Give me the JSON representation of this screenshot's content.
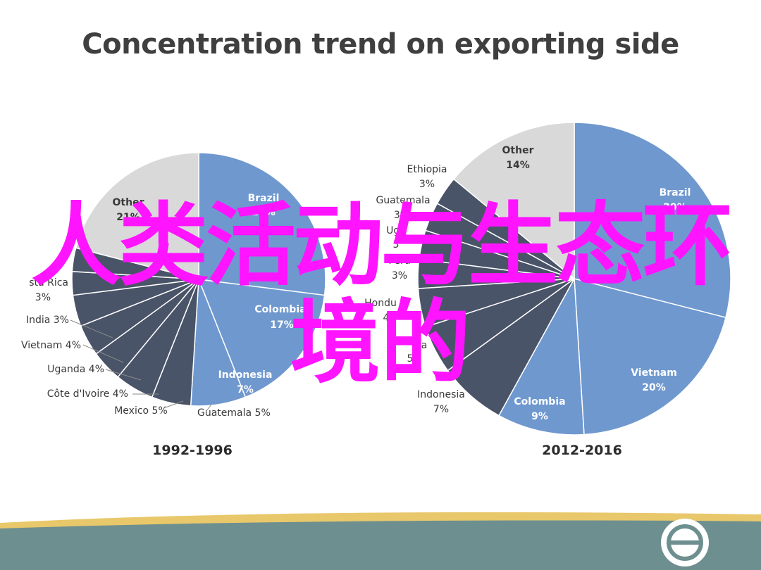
{
  "slide": {
    "title": "Concentration trend on exporting side",
    "overlay_line1": "人类活动与生态环",
    "overlay_line2": "境的"
  },
  "colors": {
    "brazil_blue": "#6f98cf",
    "dark_slate": "#4a5468",
    "other_gray": "#d9d9d9",
    "slice_border": "#ffffff",
    "overlay_magenta": "#ff14ff",
    "footer_teal": "#6e8f90",
    "footer_gold": "#e8c86a"
  },
  "chart_data": [
    {
      "type": "pie",
      "title": "1992-1996",
      "slices": [
        {
          "label": "Brazil",
          "value": 27,
          "value_text": "27%"
        },
        {
          "label": "Colombia",
          "value": 17,
          "value_text": "17%"
        },
        {
          "label": "Indonesia",
          "value": 7,
          "value_text": "7%"
        },
        {
          "label": "Guatemala",
          "value": 5,
          "value_text": "5%"
        },
        {
          "label": "Mexico",
          "value": 5,
          "value_text": "5%"
        },
        {
          "label": "Côte d'Ivoire",
          "value": 4,
          "value_text": "4%"
        },
        {
          "label": "Uganda",
          "value": 4,
          "value_text": "4%"
        },
        {
          "label": "Vietnam",
          "value": 4,
          "value_text": "4%"
        },
        {
          "label": "India",
          "value": 3,
          "value_text": "3%"
        },
        {
          "label": "Costa Rica",
          "value": 3,
          "value_text": "3%"
        },
        {
          "label": "Other",
          "value": 21,
          "value_text": "21%"
        }
      ],
      "visible_labels": [
        {
          "text": "Brazil",
          "anchor": "middle"
        },
        {
          "text": "27%",
          "anchor": "middle"
        },
        {
          "text": "Colombia",
          "anchor": "middle"
        },
        {
          "text": "17%",
          "anchor": "middle"
        },
        {
          "text": "Indonesia",
          "anchor": "middle"
        },
        {
          "text": "7%",
          "anchor": "middle"
        },
        {
          "text": "Guatemala 5%",
          "anchor": "start"
        },
        {
          "text": "Mexico 5%",
          "anchor": "middle"
        },
        {
          "text": "Côte d'Ivoire 4%",
          "anchor": "end"
        },
        {
          "text": "Uganda 4%",
          "anchor": "end"
        },
        {
          "text": "Vietnam 4%",
          "anchor": "end"
        },
        {
          "text": "India 3%",
          "anchor": "end"
        },
        {
          "text": "sta Rica",
          "anchor": "end"
        },
        {
          "text": "3%",
          "anchor": "end"
        },
        {
          "text": "Other",
          "anchor": "middle"
        },
        {
          "text": "21%",
          "anchor": "middle"
        }
      ]
    },
    {
      "type": "pie",
      "title": "2012-2016",
      "slices": [
        {
          "label": "Brazil",
          "value": 29,
          "value_text": "29%"
        },
        {
          "label": "Vietnam",
          "value": 20,
          "value_text": "20%"
        },
        {
          "label": "Colombia",
          "value": 9,
          "value_text": "9%"
        },
        {
          "label": "Indonesia",
          "value": 7,
          "value_text": "7%"
        },
        {
          "label": "Ethiopia",
          "value": 5,
          "value_text": "5%"
        },
        {
          "label": "Honduras",
          "value": 4,
          "value_text": "4%"
        },
        {
          "label": "Peru",
          "value": 3,
          "value_text": "3%"
        },
        {
          "label": "Uganda",
          "value": 3,
          "value_text": "3%"
        },
        {
          "label": "Guatemala",
          "value": 3,
          "value_text": "3%"
        },
        {
          "label": "Ethiopia",
          "value": 3,
          "value_text": "3%"
        },
        {
          "label": "Other",
          "value": 14,
          "value_text": "14%"
        }
      ],
      "visible_labels": [
        {
          "text": "Brazil",
          "anchor": "middle"
        },
        {
          "text": "29%",
          "anchor": "middle"
        },
        {
          "text": "Vietnam",
          "anchor": "middle"
        },
        {
          "text": "20%",
          "anchor": "middle"
        },
        {
          "text": "Colombia",
          "anchor": "middle"
        },
        {
          "text": "9%",
          "anchor": "middle"
        },
        {
          "text": "Indonesia",
          "anchor": "middle"
        },
        {
          "text": "7%",
          "anchor": "middle"
        },
        {
          "text": "a",
          "anchor": "middle"
        },
        {
          "text": "5",
          "anchor": "middle"
        },
        {
          "text": "Hondu",
          "anchor": "middle"
        },
        {
          "text": "4",
          "anchor": "middle"
        },
        {
          "text": "Peru",
          "anchor": "middle"
        },
        {
          "text": "3%",
          "anchor": "middle"
        },
        {
          "text": "Uga",
          "anchor": "middle"
        },
        {
          "text": "3",
          "anchor": "middle"
        },
        {
          "text": "Guatemala",
          "anchor": "middle"
        },
        {
          "text": "3%",
          "anchor": "middle"
        },
        {
          "text": "Ethiopia",
          "anchor": "middle"
        },
        {
          "text": "3%",
          "anchor": "middle"
        },
        {
          "text": "Other",
          "anchor": "middle"
        },
        {
          "text": "14%",
          "anchor": "middle"
        }
      ]
    }
  ]
}
